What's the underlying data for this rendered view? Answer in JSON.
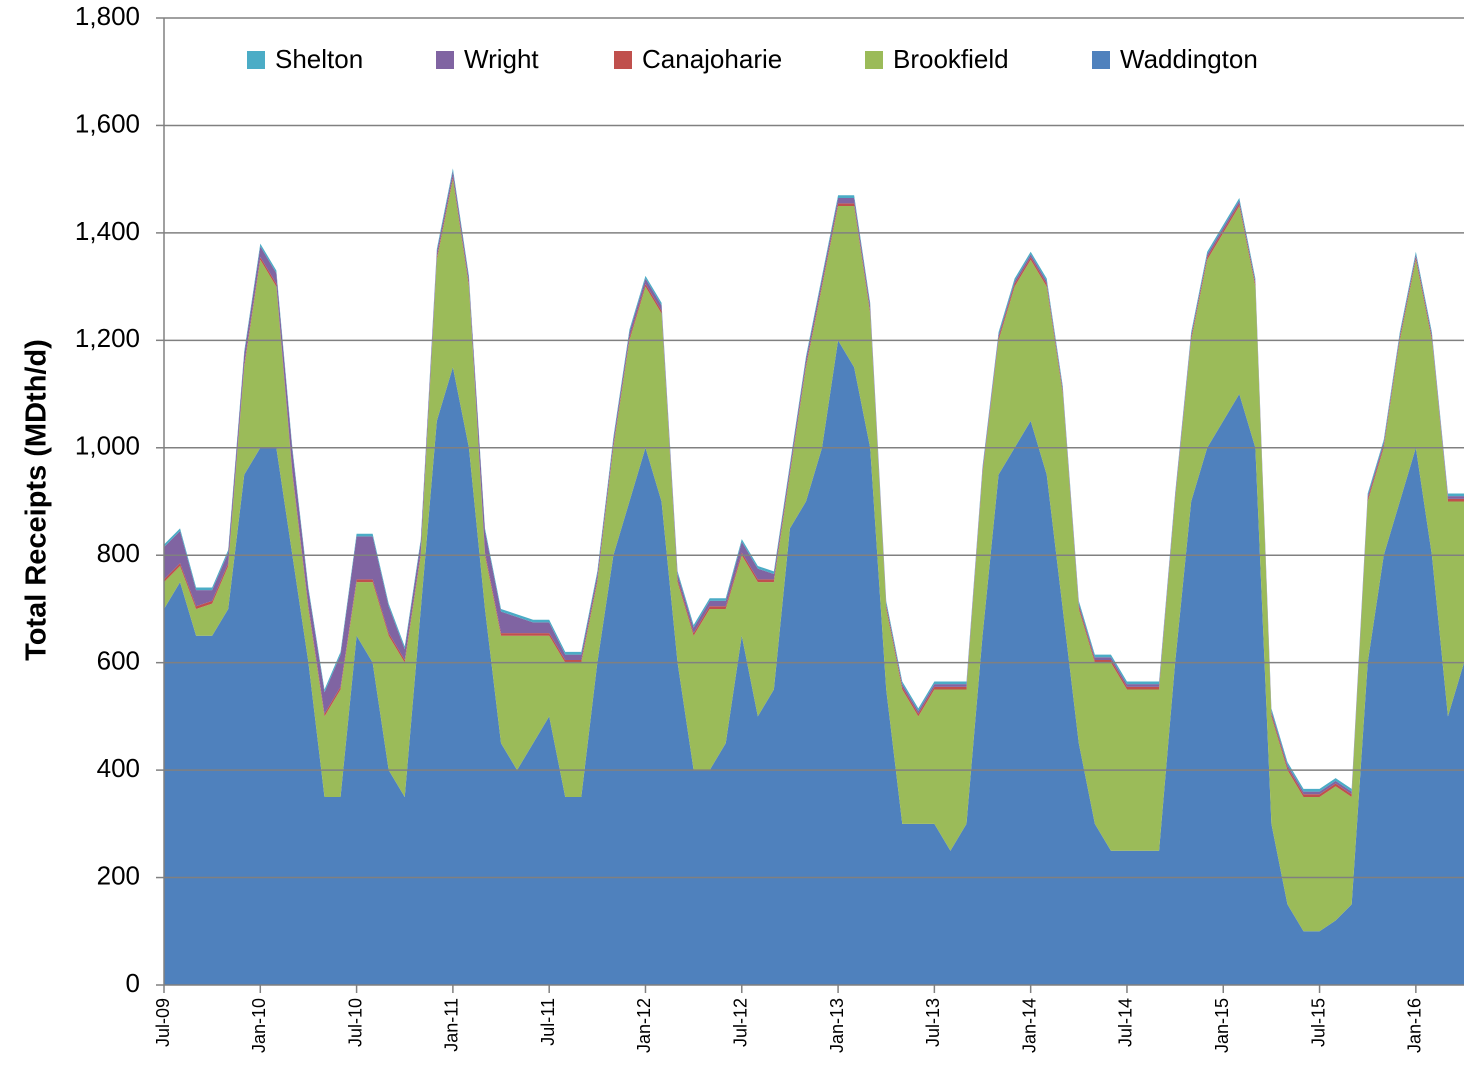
{
  "chart_data": {
    "type": "stacked_area",
    "y_label": "Total Receipts (MDth/d)",
    "categories": [
      "Jul-09",
      null,
      null,
      null,
      null,
      null,
      "Jan-10",
      null,
      null,
      null,
      null,
      null,
      "Jul-10",
      null,
      null,
      null,
      null,
      null,
      "Jan-11",
      null,
      null,
      null,
      null,
      null,
      "Jul-11",
      null,
      null,
      null,
      null,
      null,
      "Jan-12",
      null,
      null,
      null,
      null,
      null,
      "Jul-12",
      null,
      null,
      null,
      null,
      null,
      "Jan-13",
      null,
      null,
      null,
      null,
      null,
      "Jul-13",
      null,
      null,
      null,
      null,
      null,
      "Jan-14",
      null,
      null,
      null,
      null,
      null,
      "Jul-14",
      null,
      null,
      null,
      null,
      null,
      "Jan-15",
      null,
      null,
      null,
      null,
      null,
      "Jul-15",
      null,
      null,
      null,
      null,
      null,
      "Jan-16",
      null,
      null,
      null
    ],
    "series": [
      {
        "name": "Shelton",
        "color": "#4bacc6",
        "values": [
          5,
          5,
          5,
          5,
          5,
          5,
          5,
          5,
          5,
          5,
          5,
          5,
          5,
          5,
          5,
          5,
          5,
          5,
          5,
          5,
          5,
          5,
          5,
          5,
          5,
          5,
          5,
          5,
          5,
          5,
          5,
          5,
          5,
          5,
          5,
          5,
          5,
          5,
          5,
          5,
          5,
          5,
          5,
          5,
          5,
          5,
          5,
          5,
          5,
          5,
          5,
          5,
          5,
          5,
          5,
          5,
          5,
          5,
          5,
          5,
          5,
          5,
          5,
          5,
          5,
          5,
          5,
          5,
          5,
          5,
          5,
          5,
          5,
          5,
          5,
          5,
          5,
          5,
          5,
          5,
          5,
          5
        ]
      },
      {
        "name": "Wright",
        "color": "#8064a2",
        "values": [
          60,
          60,
          30,
          20,
          20,
          20,
          20,
          20,
          40,
          30,
          40,
          60,
          80,
          80,
          50,
          20,
          20,
          10,
          10,
          10,
          40,
          40,
          30,
          20,
          20,
          10,
          10,
          10,
          10,
          10,
          10,
          10,
          10,
          10,
          10,
          10,
          20,
          20,
          10,
          10,
          10,
          10,
          10,
          10,
          10,
          5,
          5,
          5,
          5,
          5,
          5,
          5,
          5,
          5,
          5,
          5,
          5,
          5,
          5,
          5,
          5,
          5,
          5,
          5,
          5,
          5,
          5,
          5,
          5,
          5,
          5,
          5,
          5,
          5,
          5,
          5,
          5,
          5,
          5,
          5,
          5,
          5
        ]
      },
      {
        "name": "Canajoharie",
        "color": "#c0504d",
        "values": [
          5,
          5,
          5,
          5,
          5,
          5,
          5,
          5,
          5,
          5,
          5,
          5,
          5,
          5,
          5,
          5,
          5,
          5,
          5,
          5,
          5,
          5,
          5,
          5,
          5,
          5,
          5,
          5,
          5,
          5,
          5,
          5,
          5,
          5,
          5,
          5,
          5,
          5,
          5,
          5,
          5,
          5,
          5,
          5,
          5,
          5,
          5,
          5,
          5,
          5,
          5,
          5,
          5,
          5,
          5,
          5,
          5,
          5,
          5,
          5,
          5,
          5,
          5,
          5,
          5,
          5,
          5,
          5,
          5,
          5,
          5,
          5,
          5,
          5,
          5,
          5,
          5,
          5,
          5,
          5,
          5,
          5
        ]
      },
      {
        "name": "Brookfield",
        "color": "#9bbb59",
        "values": [
          50,
          30,
          50,
          60,
          80,
          200,
          350,
          300,
          150,
          100,
          150,
          200,
          100,
          150,
          250,
          250,
          100,
          300,
          350,
          300,
          100,
          200,
          250,
          200,
          150,
          250,
          250,
          150,
          200,
          300,
          300,
          350,
          150,
          250,
          300,
          250,
          150,
          250,
          200,
          100,
          250,
          300,
          250,
          300,
          250,
          150,
          250,
          200,
          250,
          300,
          250,
          300,
          250,
          300,
          300,
          350,
          400,
          250,
          300,
          350,
          300,
          300,
          300,
          300,
          300,
          350,
          350,
          350,
          300,
          200,
          250,
          250,
          250,
          250,
          200,
          300,
          200,
          300,
          350,
          400,
          400,
          300
        ]
      },
      {
        "name": "Waddington",
        "color": "#4f81bd",
        "values": [
          700,
          750,
          650,
          650,
          700,
          950,
          1000,
          1000,
          800,
          600,
          350,
          350,
          650,
          600,
          400,
          350,
          700,
          1050,
          1150,
          1000,
          700,
          450,
          400,
          450,
          500,
          350,
          350,
          600,
          800,
          900,
          1000,
          900,
          600,
          400,
          400,
          450,
          650,
          500,
          550,
          850,
          900,
          1000,
          1200,
          1150,
          1000,
          550,
          300,
          300,
          300,
          250,
          300,
          650,
          950,
          1000,
          1050,
          950,
          700,
          450,
          300,
          250,
          250,
          250,
          250,
          600,
          900,
          1000,
          1050,
          1100,
          1000,
          300,
          150,
          100,
          100,
          120,
          150,
          600,
          800,
          900,
          1000,
          800,
          500,
          600
        ]
      }
    ],
    "ylim": [
      0,
      1800
    ],
    "yticks": [
      0,
      200,
      400,
      600,
      800,
      {
        "value": 1000,
        "label": "1,000"
      },
      {
        "value": 1200,
        "label": "1,200"
      },
      {
        "value": 1400,
        "label": "1,400"
      },
      {
        "value": 1600,
        "label": "1,600"
      },
      {
        "value": 1800,
        "label": "1,800"
      }
    ],
    "grid": true,
    "legend": "top"
  }
}
